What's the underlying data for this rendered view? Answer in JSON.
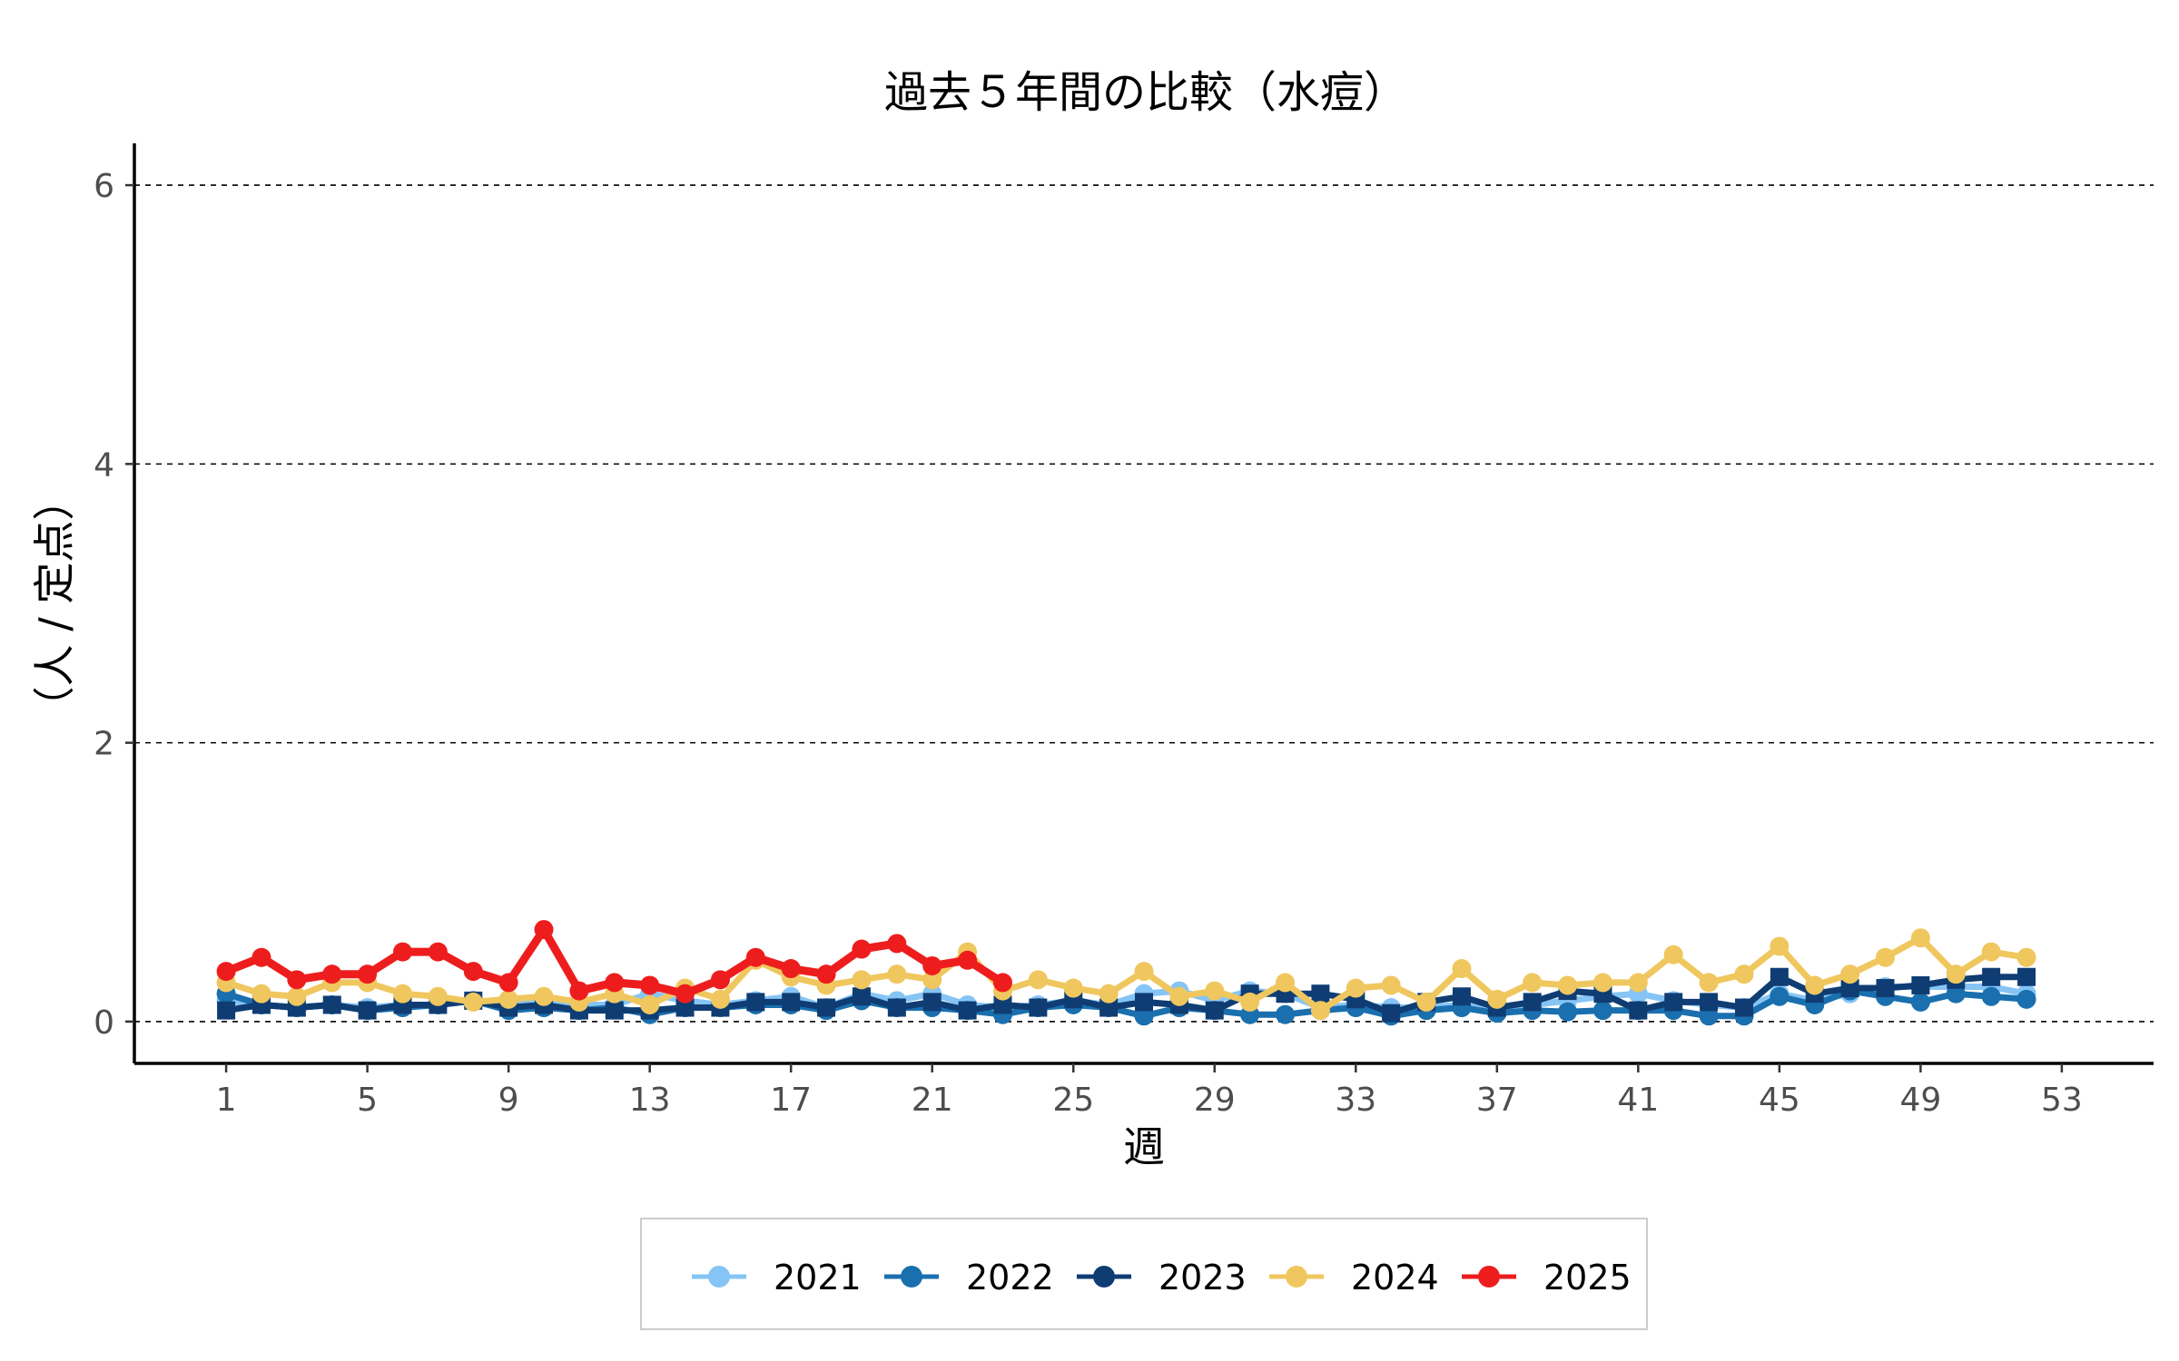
{
  "chart_data": {
    "type": "line",
    "title": "過去５年間の比較（水痘）",
    "xlabel": "週",
    "ylabel": "（人 / 定点）",
    "x_ticks": [
      1,
      5,
      9,
      13,
      17,
      21,
      25,
      29,
      33,
      37,
      41,
      45,
      49,
      53
    ],
    "y_ticks": [
      0,
      2,
      4,
      6
    ],
    "xlim": [
      -1.6,
      55.6
    ],
    "ylim": [
      -0.3,
      6.3
    ],
    "grid": "horizontal-dashed",
    "legend_position": "bottom",
    "series": [
      {
        "name": "2021",
        "color": "#85c4f5",
        "marker": "circle",
        "x": [
          1,
          2,
          3,
          4,
          5,
          6,
          7,
          8,
          9,
          10,
          11,
          12,
          13,
          14,
          15,
          16,
          17,
          18,
          19,
          20,
          21,
          22,
          23,
          24,
          25,
          26,
          27,
          28,
          29,
          30,
          31,
          32,
          33,
          34,
          35,
          36,
          37,
          38,
          39,
          40,
          41,
          42,
          43,
          44,
          45,
          46,
          47,
          48,
          49,
          50,
          51,
          52
        ],
        "values": [
          0.15,
          0.12,
          0.1,
          0.12,
          0.1,
          0.12,
          0.12,
          0.15,
          0.12,
          0.15,
          0.12,
          0.12,
          0.2,
          0.15,
          0.12,
          0.15,
          0.18,
          0.1,
          0.2,
          0.15,
          0.2,
          0.12,
          0.1,
          0.12,
          0.15,
          0.12,
          0.2,
          0.22,
          0.15,
          0.22,
          0.2,
          0.1,
          0.12,
          0.1,
          0.1,
          0.12,
          0.1,
          0.12,
          0.15,
          0.18,
          0.2,
          0.15,
          0.12,
          0.1,
          0.2,
          0.15,
          0.2,
          0.25,
          0.25,
          0.25,
          0.25,
          0.2
        ]
      },
      {
        "name": "2022",
        "color": "#1a6fae",
        "marker": "circle",
        "x": [
          1,
          2,
          3,
          4,
          5,
          6,
          7,
          8,
          9,
          10,
          11,
          12,
          13,
          14,
          15,
          16,
          17,
          18,
          19,
          20,
          21,
          22,
          23,
          24,
          25,
          26,
          27,
          28,
          29,
          30,
          31,
          32,
          33,
          34,
          35,
          36,
          37,
          38,
          39,
          40,
          41,
          42,
          43,
          44,
          45,
          46,
          47,
          48,
          49,
          50,
          51,
          52
        ],
        "values": [
          0.2,
          0.12,
          0.1,
          0.12,
          0.08,
          0.1,
          0.12,
          0.15,
          0.08,
          0.1,
          0.08,
          0.1,
          0.05,
          0.1,
          0.1,
          0.12,
          0.12,
          0.08,
          0.15,
          0.1,
          0.1,
          0.08,
          0.05,
          0.1,
          0.12,
          0.1,
          0.04,
          0.1,
          0.08,
          0.05,
          0.05,
          0.08,
          0.1,
          0.04,
          0.08,
          0.1,
          0.06,
          0.08,
          0.07,
          0.08,
          0.08,
          0.08,
          0.04,
          0.04,
          0.18,
          0.12,
          0.22,
          0.18,
          0.14,
          0.2,
          0.18,
          0.16
        ]
      },
      {
        "name": "2023",
        "color": "#0f3d73",
        "marker": "square",
        "x": [
          1,
          2,
          3,
          4,
          5,
          6,
          7,
          8,
          9,
          10,
          11,
          12,
          13,
          14,
          15,
          16,
          17,
          18,
          19,
          20,
          21,
          22,
          23,
          24,
          25,
          26,
          27,
          28,
          29,
          30,
          31,
          32,
          33,
          34,
          35,
          36,
          37,
          38,
          39,
          40,
          41,
          42,
          43,
          44,
          45,
          46,
          47,
          48,
          49,
          50,
          51,
          52
        ],
        "values": [
          0.08,
          0.12,
          0.1,
          0.12,
          0.08,
          0.12,
          0.12,
          0.15,
          0.1,
          0.12,
          0.08,
          0.08,
          0.08,
          0.1,
          0.1,
          0.14,
          0.14,
          0.1,
          0.18,
          0.1,
          0.14,
          0.08,
          0.12,
          0.1,
          0.16,
          0.1,
          0.14,
          0.12,
          0.08,
          0.2,
          0.2,
          0.2,
          0.16,
          0.06,
          0.14,
          0.18,
          0.1,
          0.14,
          0.22,
          0.2,
          0.08,
          0.14,
          0.14,
          0.1,
          0.32,
          0.2,
          0.24,
          0.24,
          0.26,
          0.3,
          0.32,
          0.32
        ]
      },
      {
        "name": "2024",
        "color": "#f0c75e",
        "marker": "circle",
        "x": [
          1,
          2,
          3,
          4,
          5,
          6,
          7,
          8,
          9,
          10,
          11,
          12,
          13,
          14,
          15,
          16,
          17,
          18,
          19,
          20,
          21,
          22,
          23,
          24,
          25,
          26,
          27,
          28,
          29,
          30,
          31,
          32,
          33,
          34,
          35,
          36,
          37,
          38,
          39,
          40,
          41,
          42,
          43,
          44,
          45,
          46,
          47,
          48,
          49,
          50,
          51,
          52
        ],
        "values": [
          0.28,
          0.2,
          0.18,
          0.28,
          0.28,
          0.2,
          0.18,
          0.14,
          0.16,
          0.18,
          0.14,
          0.2,
          0.12,
          0.24,
          0.16,
          0.44,
          0.32,
          0.26,
          0.3,
          0.34,
          0.3,
          0.5,
          0.22,
          0.3,
          0.24,
          0.2,
          0.36,
          0.18,
          0.22,
          0.14,
          0.28,
          0.08,
          0.24,
          0.26,
          0.14,
          0.38,
          0.16,
          0.28,
          0.26,
          0.28,
          0.28,
          0.48,
          0.28,
          0.34,
          0.54,
          0.26,
          0.34,
          0.46,
          0.6,
          0.34,
          0.5,
          0.46
        ]
      },
      {
        "name": "2025",
        "color": "#ee1d1d",
        "marker": "circle",
        "x": [
          1,
          2,
          3,
          4,
          5,
          6,
          7,
          8,
          9,
          10,
          11,
          12,
          13,
          14,
          15,
          16,
          17,
          18,
          19,
          20,
          21,
          22,
          23
        ],
        "values": [
          0.36,
          0.46,
          0.3,
          0.34,
          0.34,
          0.5,
          0.5,
          0.36,
          0.28,
          0.66,
          0.22,
          0.28,
          0.26,
          0.2,
          0.3,
          0.46,
          0.38,
          0.34,
          0.52,
          0.56,
          0.4,
          0.44,
          0.28
        ]
      }
    ]
  }
}
